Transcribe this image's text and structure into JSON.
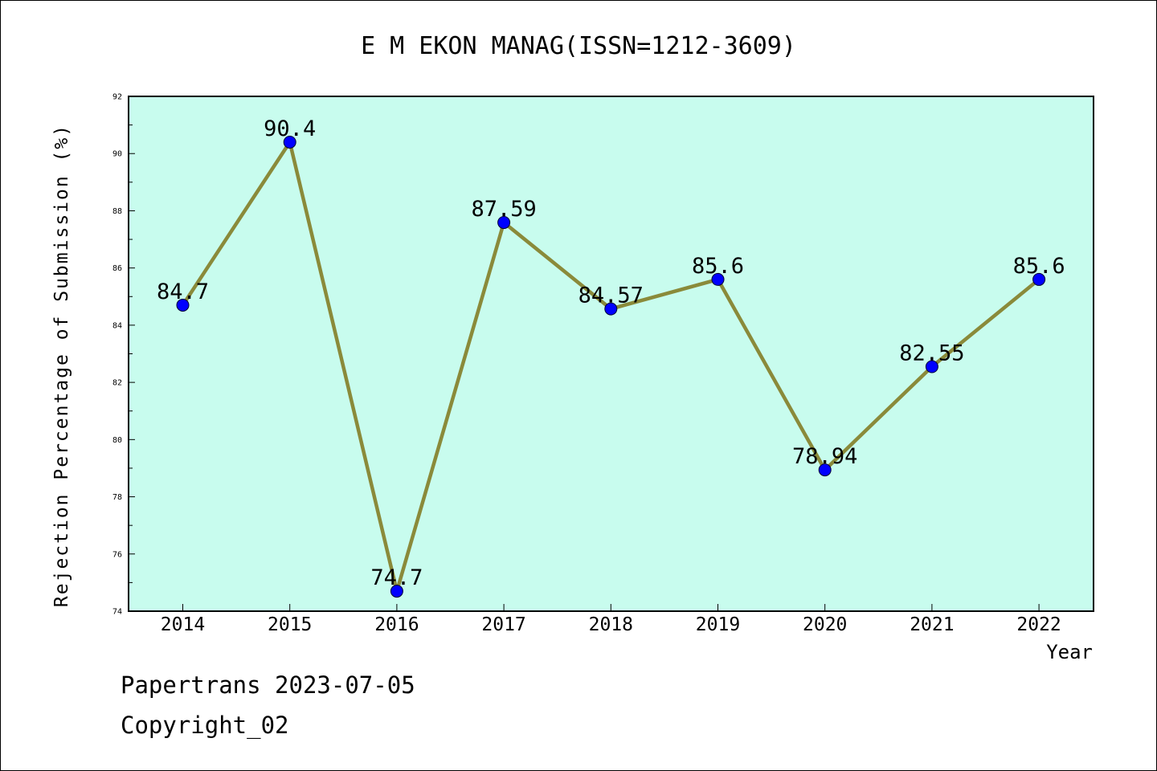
{
  "chart_data": {
    "type": "line",
    "title": "E M EKON MANAG(ISSN=1212-3609)",
    "xlabel": "Year",
    "ylabel": "Rejection Percentage of Submission (%)",
    "categories": [
      "2014",
      "2015",
      "2016",
      "2017",
      "2018",
      "2019",
      "2020",
      "2021",
      "2022"
    ],
    "values": [
      84.7,
      90.4,
      74.7,
      87.59,
      84.57,
      85.6,
      78.94,
      82.55,
      85.6
    ],
    "data_labels": [
      "84.7",
      "90.4",
      "74.7",
      "87.59",
      "84.57",
      "85.6",
      "78.94",
      "82.55",
      "85.6"
    ],
    "ylim": [
      74,
      92
    ],
    "yticks": [
      "74",
      "76",
      "78",
      "80",
      "82",
      "84",
      "86",
      "88",
      "90",
      "92"
    ],
    "grid": false,
    "colors": {
      "plot_background": "#c8fcee",
      "line": "#8a8a3a",
      "marker": "#0000ff"
    }
  },
  "footer": {
    "line1": "Papertrans 2023-07-05",
    "line2": "Copyright_02"
  }
}
